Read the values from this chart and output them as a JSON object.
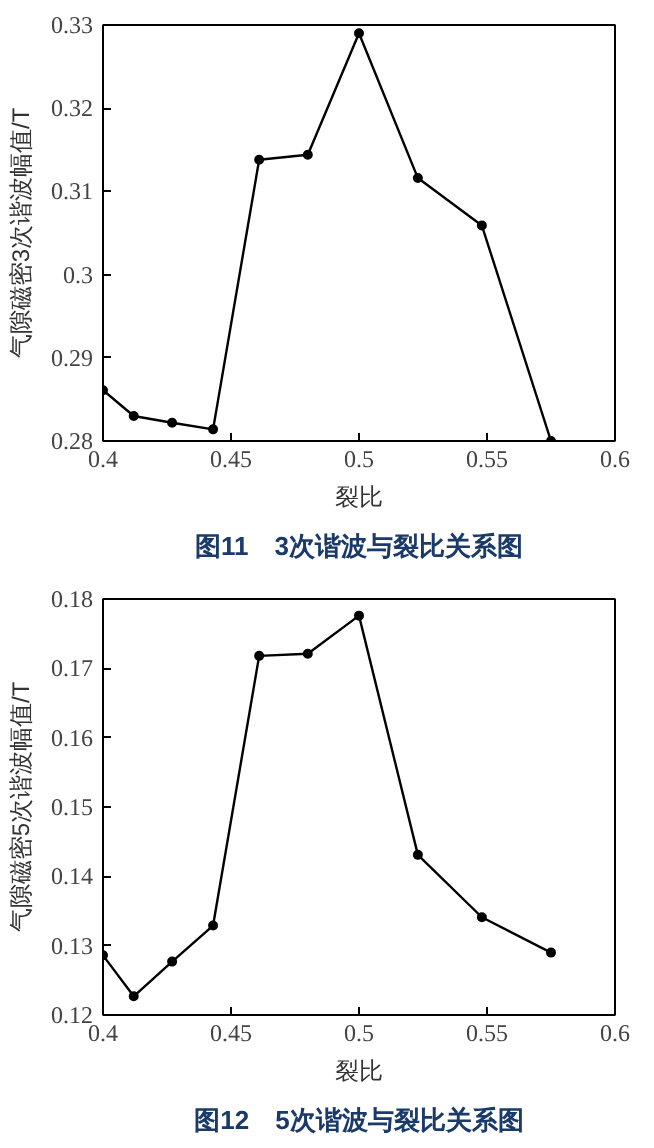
{
  "chart_data": [
    {
      "type": "line",
      "title": "图11　3次谐波与裂比关系图",
      "xlabel": "裂比",
      "ylabel": "气隙磁密3次谐波幅值/T",
      "x": [
        0.4,
        0.412,
        0.427,
        0.443,
        0.461,
        0.48,
        0.5,
        0.523,
        0.548,
        0.575
      ],
      "series": [
        {
          "color": "#000000",
          "values": [
            0.2861,
            0.283,
            0.2822,
            0.2814,
            0.3138,
            0.3144,
            0.329,
            0.3116,
            0.3059,
            0.28
          ]
        }
      ],
      "xlim": [
        0.4,
        0.6
      ],
      "xticks": [
        0.4,
        0.45,
        0.5,
        0.55,
        0.6
      ],
      "ylim": [
        0.28,
        0.33
      ],
      "yticks": [
        0.28,
        0.29,
        0.3,
        0.31,
        0.32,
        0.33
      ],
      "grid": false,
      "marker": "circle",
      "line_style": "solid"
    },
    {
      "type": "line",
      "title": "图12　5次谐波与裂比关系图",
      "xlabel": "裂比",
      "ylabel": "气隙磁密5次谐波幅值/T",
      "x": [
        0.4,
        0.412,
        0.427,
        0.443,
        0.461,
        0.48,
        0.5,
        0.523,
        0.548,
        0.575
      ],
      "series": [
        {
          "color": "#000000",
          "values": [
            0.1286,
            0.1227,
            0.1277,
            0.1329,
            0.1718,
            0.1721,
            0.1776,
            0.1431,
            0.1341,
            0.129
          ]
        }
      ],
      "xlim": [
        0.4,
        0.6
      ],
      "xticks": [
        0.4,
        0.45,
        0.5,
        0.55,
        0.6
      ],
      "ylim": [
        0.12,
        0.18
      ],
      "yticks": [
        0.12,
        0.13,
        0.14,
        0.15,
        0.16,
        0.17,
        0.18
      ],
      "grid": false,
      "marker": "circle",
      "line_style": "solid"
    }
  ]
}
